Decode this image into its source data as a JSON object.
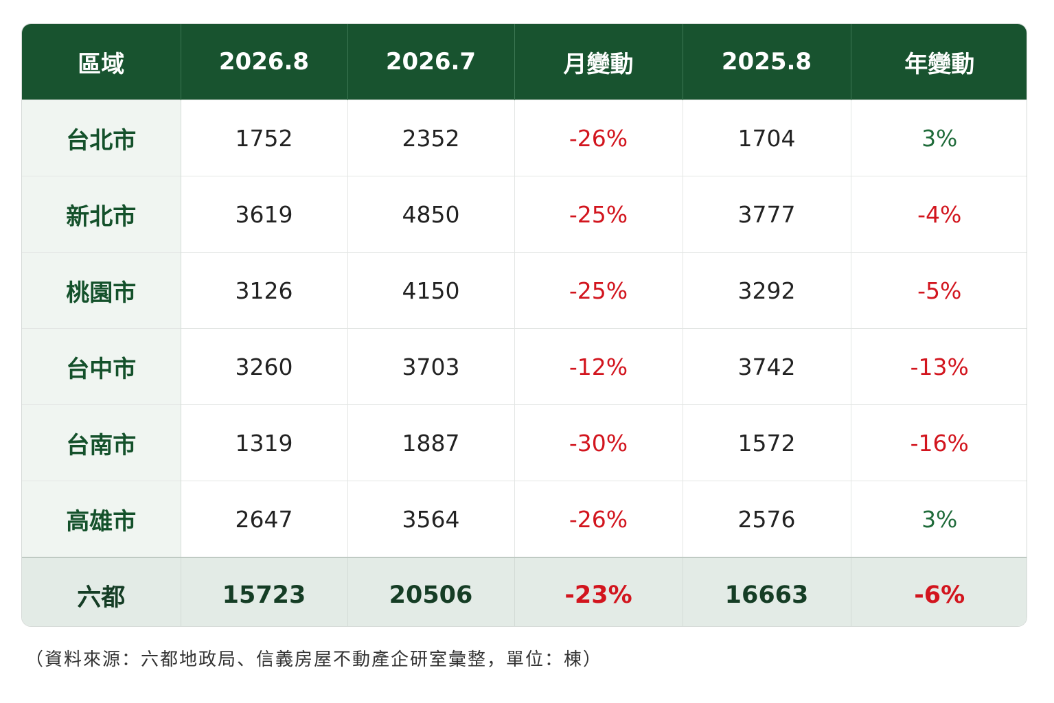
{
  "table": {
    "headers": [
      "區域",
      "2026.8",
      "2026.7",
      "月變動",
      "2025.8",
      "年變動"
    ],
    "rows": [
      {
        "region": "台北市",
        "aug_2026": "1752",
        "jul_2026": "2352",
        "mom": "-26%",
        "aug_2025": "1704",
        "yoy": "3%"
      },
      {
        "region": "新北市",
        "aug_2026": "3619",
        "jul_2026": "4850",
        "mom": "-25%",
        "aug_2025": "3777",
        "yoy": "-4%"
      },
      {
        "region": "桃園市",
        "aug_2026": "3126",
        "jul_2026": "4150",
        "mom": "-25%",
        "aug_2025": "3292",
        "yoy": "-5%"
      },
      {
        "region": "台中市",
        "aug_2026": "3260",
        "jul_2026": "3703",
        "mom": "-12%",
        "aug_2025": "3742",
        "yoy": "-13%"
      },
      {
        "region": "台南市",
        "aug_2026": "1319",
        "jul_2026": "1887",
        "mom": "-30%",
        "aug_2025": "1572",
        "yoy": "-16%"
      },
      {
        "region": "高雄市",
        "aug_2026": "2647",
        "jul_2026": "3564",
        "mom": "-26%",
        "aug_2025": "2576",
        "yoy": "3%"
      }
    ],
    "total": {
      "region": "六都",
      "aug_2026": "15723",
      "jul_2026": "20506",
      "mom": "-23%",
      "aug_2025": "16663",
      "yoy": "-6%"
    }
  },
  "colors": {
    "header_bg": "#18532f",
    "negative": "#d2151e",
    "positive": "#1f6b3a",
    "region_bg": "#f0f5f1",
    "total_bg": "#e3ebe6"
  },
  "footnote": "（資料來源：六都地政局、信義房屋不動產企研室彙整，單位：棟）"
}
